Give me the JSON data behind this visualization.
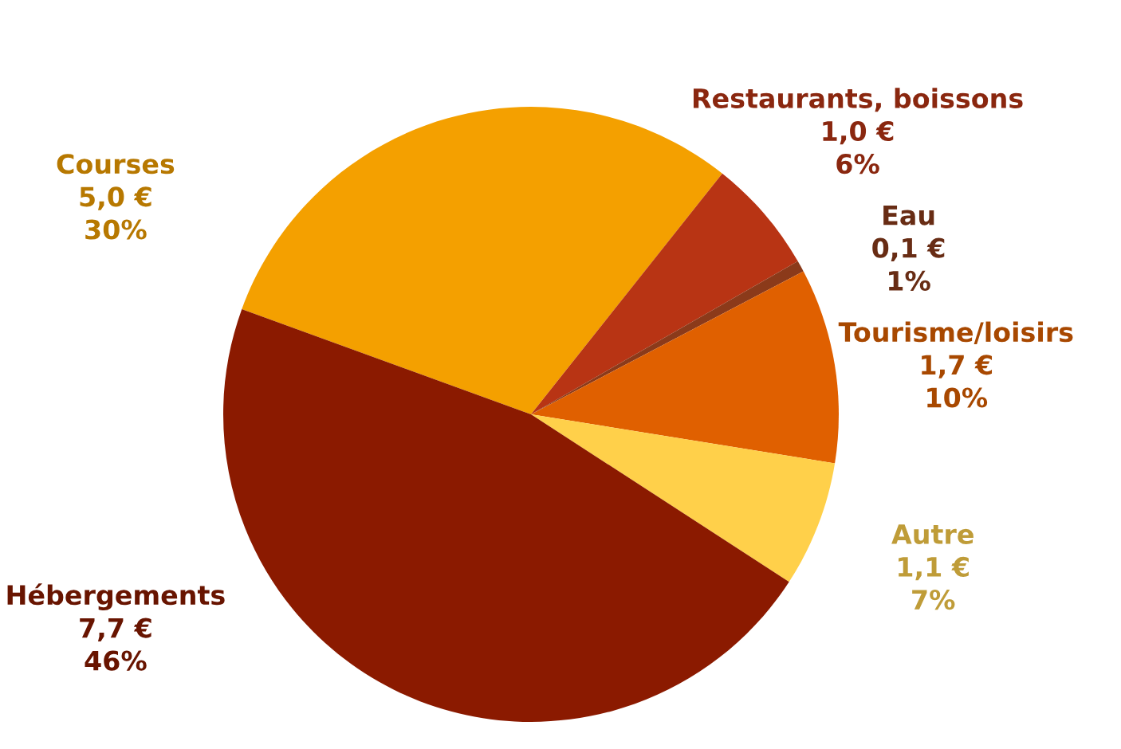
{
  "chart_data": {
    "type": "pie",
    "categories": [
      "Courses",
      "Restaurants, boissons",
      "Eau",
      "Tourisme/loisirs",
      "Autre",
      "Hébergements"
    ],
    "values": [
      5.0,
      1.0,
      0.1,
      1.7,
      1.1,
      7.7
    ],
    "value_labels": [
      "5,0 €\n30%",
      "1,0 €\n6%",
      "0,1 €\n1%",
      "1,7 €\n10%",
      "1,1 €\n7%",
      "7,7 €\n46%"
    ],
    "colors": [
      "#f4a000",
      "#b83414",
      "#8b3a1a",
      "#e06000",
      "#ffd04a",
      "#8b1a00"
    ]
  }
}
